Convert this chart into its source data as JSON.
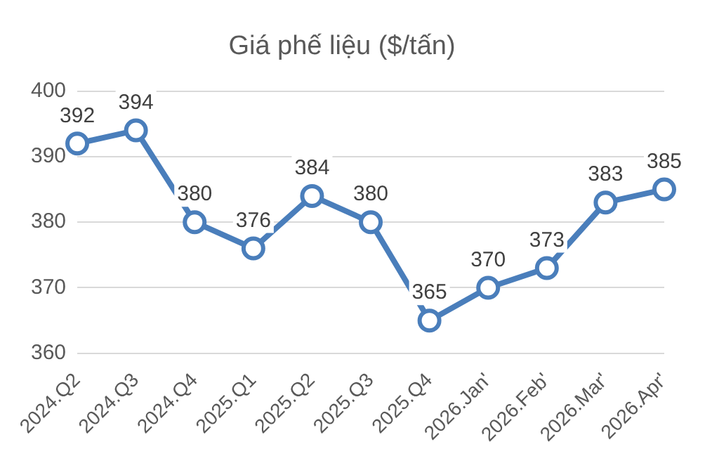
{
  "chart_data": {
    "type": "line",
    "title": "Giá phế liệu ($/tấn)",
    "categories": [
      "2024.Q2",
      "2024.Q3",
      "2024.Q4",
      "2025.Q1",
      "2025.Q2",
      "2025.Q3",
      "2025.Q4",
      "2026.Jan'",
      "2026.Feb'",
      "2026.Mar'",
      "2026.Apr'"
    ],
    "series": [
      {
        "color": "#4a7ebb",
        "values": [
          392,
          394,
          380,
          376,
          384,
          380,
          365,
          370,
          373,
          383,
          385
        ]
      }
    ],
    "ylim": [
      360,
      400
    ],
    "yticks": [
      360,
      370,
      380,
      390,
      400
    ],
    "grid": "y",
    "legend": false,
    "marker": "circle",
    "line_style": "solid",
    "data_labels": true
  }
}
